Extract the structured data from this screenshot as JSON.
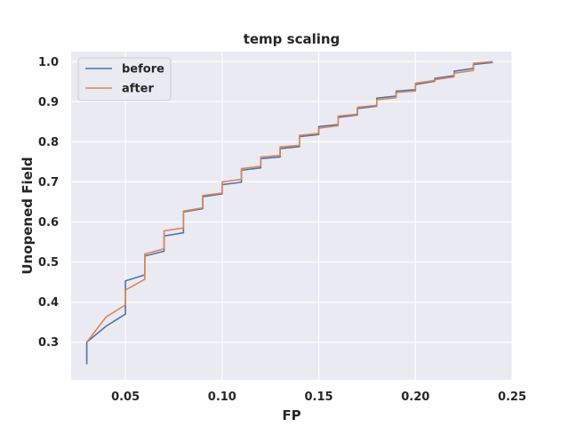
{
  "chart_data": {
    "type": "line",
    "title": "temp scaling",
    "xlabel": "FP",
    "ylabel": "Unopened Field",
    "xlim": [
      0.0219,
      0.25
    ],
    "ylim": [
      0.206,
      1.025
    ],
    "xticks": [
      0.05,
      0.1,
      0.15,
      0.2,
      0.25
    ],
    "xtick_labels": [
      "0.05",
      "0.10",
      "0.15",
      "0.20",
      "0.25"
    ],
    "yticks": [
      0.3,
      0.4,
      0.5,
      0.6,
      0.7,
      0.8,
      0.9,
      1.0
    ],
    "ytick_labels": [
      "0.3",
      "0.4",
      "0.5",
      "0.6",
      "0.7",
      "0.8",
      "0.9",
      "1.0"
    ],
    "grid": true,
    "legend_position": "top-left",
    "background": "#eaeaf2",
    "series": [
      {
        "name": "before",
        "color": "#4c72b0",
        "points": [
          [
            0.03,
            0.245
          ],
          [
            0.03,
            0.3
          ],
          [
            0.04,
            0.34
          ],
          [
            0.05,
            0.37
          ],
          [
            0.05,
            0.453
          ],
          [
            0.06,
            0.468
          ],
          [
            0.06,
            0.515
          ],
          [
            0.07,
            0.527
          ],
          [
            0.07,
            0.565
          ],
          [
            0.08,
            0.573
          ],
          [
            0.08,
            0.625
          ],
          [
            0.09,
            0.633
          ],
          [
            0.09,
            0.663
          ],
          [
            0.1,
            0.67
          ],
          [
            0.1,
            0.693
          ],
          [
            0.11,
            0.699
          ],
          [
            0.11,
            0.729
          ],
          [
            0.12,
            0.735
          ],
          [
            0.12,
            0.758
          ],
          [
            0.13,
            0.762
          ],
          [
            0.13,
            0.783
          ],
          [
            0.14,
            0.788
          ],
          [
            0.14,
            0.813
          ],
          [
            0.15,
            0.818
          ],
          [
            0.15,
            0.838
          ],
          [
            0.16,
            0.843
          ],
          [
            0.16,
            0.861
          ],
          [
            0.17,
            0.867
          ],
          [
            0.17,
            0.883
          ],
          [
            0.18,
            0.889
          ],
          [
            0.18,
            0.909
          ],
          [
            0.19,
            0.914
          ],
          [
            0.19,
            0.926
          ],
          [
            0.2,
            0.93
          ],
          [
            0.2,
            0.943
          ],
          [
            0.21,
            0.951
          ],
          [
            0.21,
            0.958
          ],
          [
            0.22,
            0.965
          ],
          [
            0.22,
            0.976
          ],
          [
            0.23,
            0.983
          ],
          [
            0.23,
            0.993
          ],
          [
            0.24,
            0.998
          ]
        ]
      },
      {
        "name": "after",
        "color": "#dd8452",
        "points": [
          [
            0.03,
            0.3
          ],
          [
            0.04,
            0.363
          ],
          [
            0.05,
            0.393
          ],
          [
            0.05,
            0.43
          ],
          [
            0.06,
            0.457
          ],
          [
            0.06,
            0.52
          ],
          [
            0.07,
            0.533
          ],
          [
            0.07,
            0.578
          ],
          [
            0.08,
            0.585
          ],
          [
            0.08,
            0.627
          ],
          [
            0.09,
            0.635
          ],
          [
            0.09,
            0.666
          ],
          [
            0.1,
            0.672
          ],
          [
            0.1,
            0.7
          ],
          [
            0.11,
            0.706
          ],
          [
            0.11,
            0.733
          ],
          [
            0.12,
            0.739
          ],
          [
            0.12,
            0.762
          ],
          [
            0.13,
            0.766
          ],
          [
            0.13,
            0.787
          ],
          [
            0.14,
            0.791
          ],
          [
            0.14,
            0.816
          ],
          [
            0.15,
            0.821
          ],
          [
            0.15,
            0.834
          ],
          [
            0.16,
            0.84
          ],
          [
            0.16,
            0.864
          ],
          [
            0.17,
            0.869
          ],
          [
            0.17,
            0.886
          ],
          [
            0.18,
            0.891
          ],
          [
            0.18,
            0.905
          ],
          [
            0.19,
            0.91
          ],
          [
            0.19,
            0.923
          ],
          [
            0.2,
            0.927
          ],
          [
            0.2,
            0.946
          ],
          [
            0.21,
            0.953
          ],
          [
            0.21,
            0.955
          ],
          [
            0.22,
            0.962
          ],
          [
            0.22,
            0.971
          ],
          [
            0.23,
            0.978
          ],
          [
            0.23,
            0.996
          ],
          [
            0.24,
            1.0
          ]
        ]
      }
    ]
  }
}
